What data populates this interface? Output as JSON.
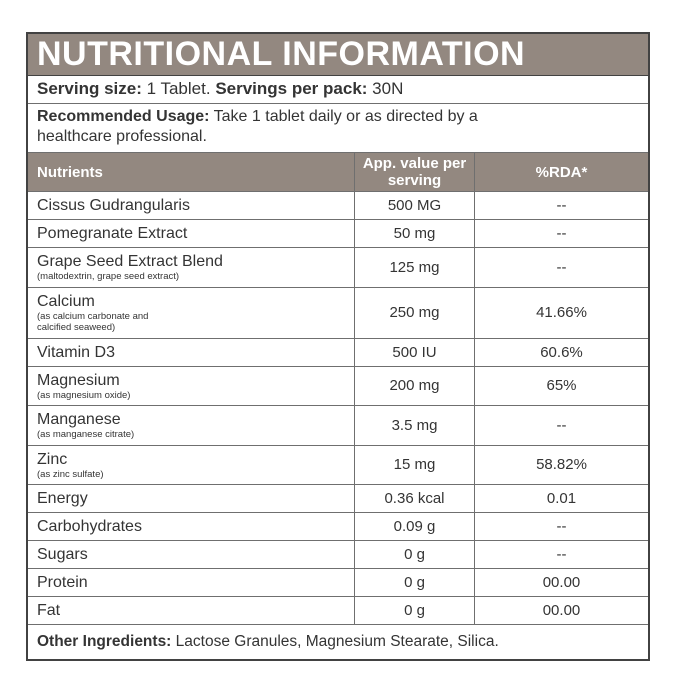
{
  "title": "NUTRITIONAL INFORMATION",
  "serving": {
    "size_label": "Serving size:",
    "size_value": "1 Tablet.",
    "pack_label": "Servings per pack:",
    "pack_value": "30N"
  },
  "usage": {
    "label": "Recommended Usage:",
    "text": "Take 1 tablet daily or as directed by a healthcare professional."
  },
  "table": {
    "headers": {
      "nutrients": "Nutrients",
      "value": "App. value per serving",
      "rda": "%RDA*"
    },
    "rows": [
      {
        "name": "Cissus Gudrangularis",
        "sub": "",
        "value": "500 MG",
        "rda": "--"
      },
      {
        "name": "Pomegranate Extract",
        "sub": "",
        "value": "50 mg",
        "rda": "--"
      },
      {
        "name": "Grape Seed Extract Blend",
        "sub": "(maltodextrin, grape seed extract)",
        "value": "125 mg",
        "rda": "--"
      },
      {
        "name": "Calcium",
        "sub": "(as calcium carbonate and\ncalcified seaweed)",
        "value": "250 mg",
        "rda": "41.66%"
      },
      {
        "name": "Vitamin D3",
        "sub": "",
        "value": "500 IU",
        "rda": "60.6%"
      },
      {
        "name": "Magnesium",
        "sub": "(as magnesium oxide)",
        "value": "200 mg",
        "rda": "65%"
      },
      {
        "name": "Manganese",
        "sub": "(as manganese citrate)",
        "value": "3.5 mg",
        "rda": "--"
      },
      {
        "name": "Zinc",
        "sub": "(as zinc sulfate)",
        "value": "15 mg",
        "rda": "58.82%"
      },
      {
        "name": "Energy",
        "sub": "",
        "value": "0.36 kcal",
        "rda": "0.01"
      },
      {
        "name": "Carbohydrates",
        "sub": "",
        "value": "0.09 g",
        "rda": "--"
      },
      {
        "name": "Sugars",
        "sub": "",
        "value": "0 g",
        "rda": "--"
      },
      {
        "name": "Protein",
        "sub": "",
        "value": "0 g",
        "rda": "00.00"
      },
      {
        "name": "Fat",
        "sub": "",
        "value": "0 g",
        "rda": "00.00"
      }
    ]
  },
  "other_ingredients": {
    "label": "Other Ingredients:",
    "text": "Lactose Granules, Magnesium Stearate, Silica."
  },
  "colors": {
    "header_bg": "#938880",
    "outer_border": "#424242",
    "row_line": "#6f6f6f",
    "text": "#343434"
  }
}
